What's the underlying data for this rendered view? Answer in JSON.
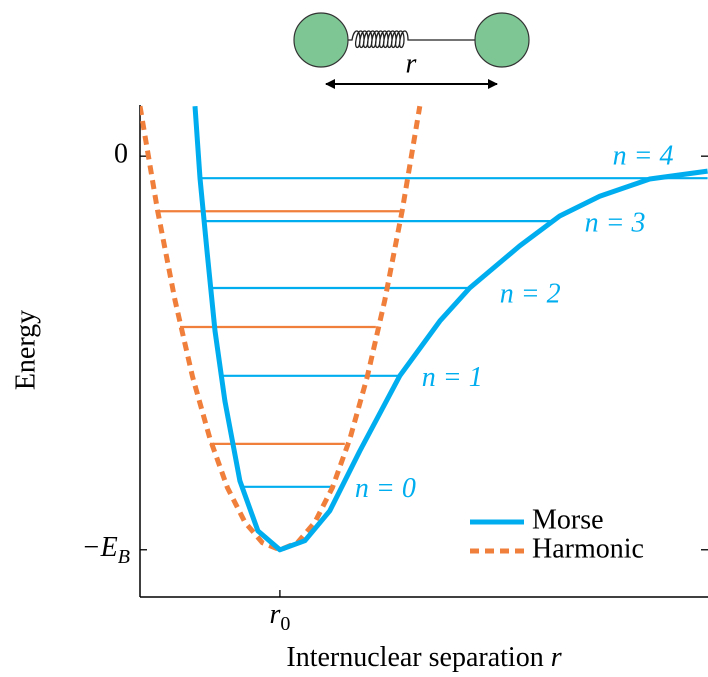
{
  "chart_data": {
    "type": "line",
    "xlabel": "Internuclear separation",
    "xlabel_symbol": "r",
    "ylabel": "Energy",
    "illustration_label": "r",
    "xlim": [
      0,
      4.06
    ],
    "ylim": [
      -1.12,
      0.13
    ],
    "xticks": [
      {
        "value": 1,
        "label": "r",
        "label_subscript": "0"
      }
    ],
    "yticks": [
      0,
      {
        "value": -1,
        "label": "−E",
        "label_subscript": "B"
      }
    ],
    "legend": "lower right",
    "series": [
      {
        "name": "Morse",
        "color": "#00aeef",
        "dashed": false,
        "x": [
          0.393,
          0.429,
          0.479,
          0.536,
          0.607,
          0.714,
          0.843,
          1.0,
          1.179,
          1.357,
          1.571,
          1.857,
          2.143,
          2.357,
          2.714,
          3.0,
          3.286,
          3.643,
          4.057
        ],
        "values": [
          0.127,
          -0.056,
          -0.241,
          -0.444,
          -0.622,
          -0.825,
          -0.952,
          -1.0,
          -0.977,
          -0.901,
          -0.749,
          -0.558,
          -0.419,
          -0.335,
          -0.228,
          -0.152,
          -0.102,
          -0.058,
          -0.038
        ],
        "levels": [
          {
            "label": "n = 0",
            "energy": -0.84,
            "r": [
              0.736,
              1.379
            ]
          },
          {
            "label": "n = 1",
            "energy": -0.558,
            "r": [
              0.579,
              1.857
            ]
          },
          {
            "label": "n = 2",
            "energy": -0.335,
            "r": [
              0.5,
              2.357
            ]
          },
          {
            "label": "n = 3",
            "energy": -0.165,
            "r": [
              0.443,
              2.964
            ]
          },
          {
            "label": "n = 4",
            "energy": -0.056,
            "r": [
              0.443,
              4.057
            ]
          }
        ]
      },
      {
        "name": "Harmonic",
        "color": "#f07f3c",
        "dashed": true,
        "x": [
          0,
          0.125,
          0.25,
          0.375,
          0.5,
          0.625,
          0.75,
          0.875,
          1.0,
          1.125,
          1.25,
          1.375,
          1.5,
          1.625,
          1.75,
          1.875,
          2.0
        ],
        "values": [
          0.127,
          -0.137,
          -0.366,
          -0.56,
          -0.718,
          -0.842,
          -0.93,
          -0.982,
          -1.0,
          -0.982,
          -0.93,
          -0.842,
          -0.718,
          -0.56,
          -0.366,
          -0.137,
          0.127
        ],
        "levels": [
          {
            "energy": -0.731,
            "r": [
              0.5,
              1.464
            ]
          },
          {
            "energy": -0.434,
            "r": [
              0.286,
              1.686
            ]
          },
          {
            "energy": -0.14,
            "r": [
              0.129,
              1.857
            ]
          }
        ]
      }
    ]
  }
}
